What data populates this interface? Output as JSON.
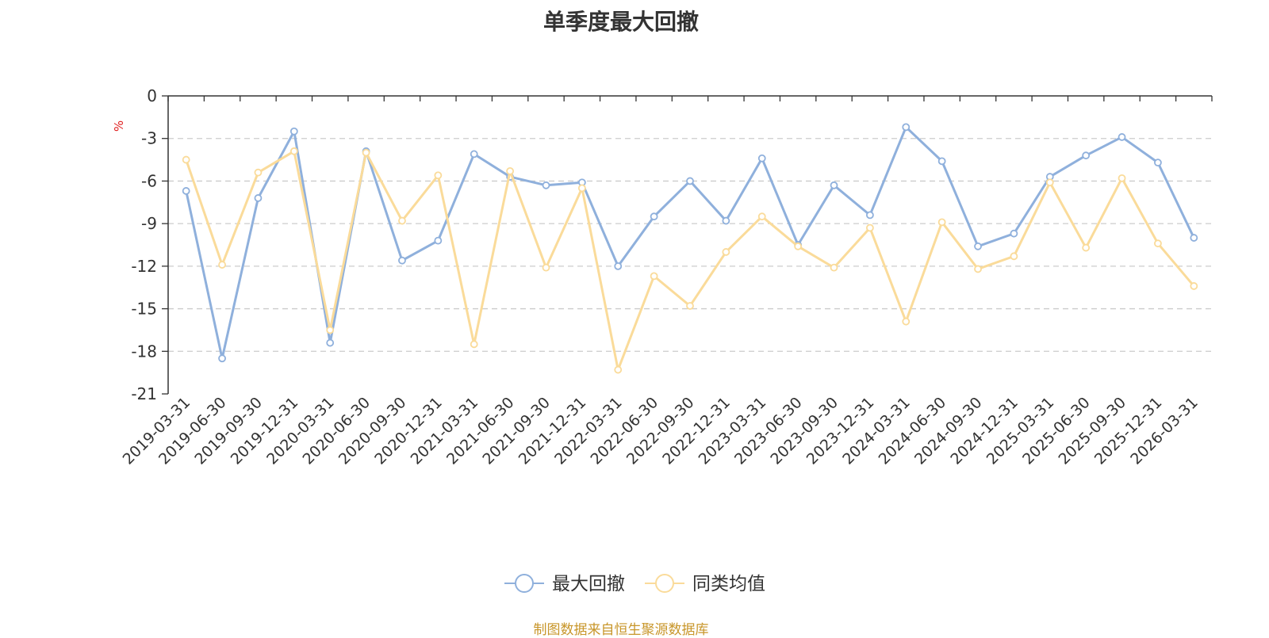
{
  "chart_data": {
    "type": "line",
    "title": "单季度最大回撤",
    "ylabel": "%",
    "ylim": [
      -21,
      0
    ],
    "yticks": [
      0,
      -3,
      -6,
      -9,
      -12,
      -15,
      -18,
      -21
    ],
    "grid": true,
    "legend_position": "bottom",
    "categories": [
      "2019-03-31",
      "2019-06-30",
      "2019-09-30",
      "2019-12-31",
      "2020-03-31",
      "2020-06-30",
      "2020-09-30",
      "2020-12-31",
      "2021-03-31",
      "2021-06-30",
      "2021-09-30",
      "2021-12-31",
      "2022-03-31",
      "2022-06-30",
      "2022-09-30",
      "2022-12-31",
      "2023-03-31",
      "2023-06-30",
      "2023-09-30",
      "2023-12-31",
      "2024-03-31",
      "2024-06-30",
      "2024-09-30",
      "2024-12-31",
      "2025-03-31",
      "2025-06-30",
      "2025-09-30",
      "2025-12-31",
      "2026-03-31"
    ],
    "series": [
      {
        "name": "最大回撤",
        "color": "#8fb0dc",
        "values": [
          -6.7,
          -18.5,
          -7.2,
          -2.5,
          -17.4,
          -3.9,
          -11.6,
          -10.2,
          -4.1,
          -5.7,
          -6.3,
          -6.1,
          -12.0,
          -8.5,
          -6.0,
          -8.8,
          -4.4,
          -10.5,
          -6.3,
          -8.4,
          -2.2,
          -4.6,
          -10.6,
          -9.7,
          -5.7,
          -4.2,
          -2.9,
          -4.7,
          -10.0
        ]
      },
      {
        "name": "同类均值",
        "color": "#fadb9a",
        "values": [
          -4.5,
          -11.9,
          -5.4,
          -3.9,
          -16.5,
          -4.0,
          -8.8,
          -5.6,
          -17.5,
          -5.3,
          -12.1,
          -6.5,
          -19.3,
          -12.7,
          -14.8,
          -11.0,
          -8.5,
          -10.6,
          -12.1,
          -9.3,
          -15.9,
          -8.9,
          -12.2,
          -11.3,
          -6.1,
          -10.7,
          -5.8,
          -10.4,
          -13.4
        ]
      }
    ]
  },
  "source_note": "制图数据来自恒生聚源数据库"
}
